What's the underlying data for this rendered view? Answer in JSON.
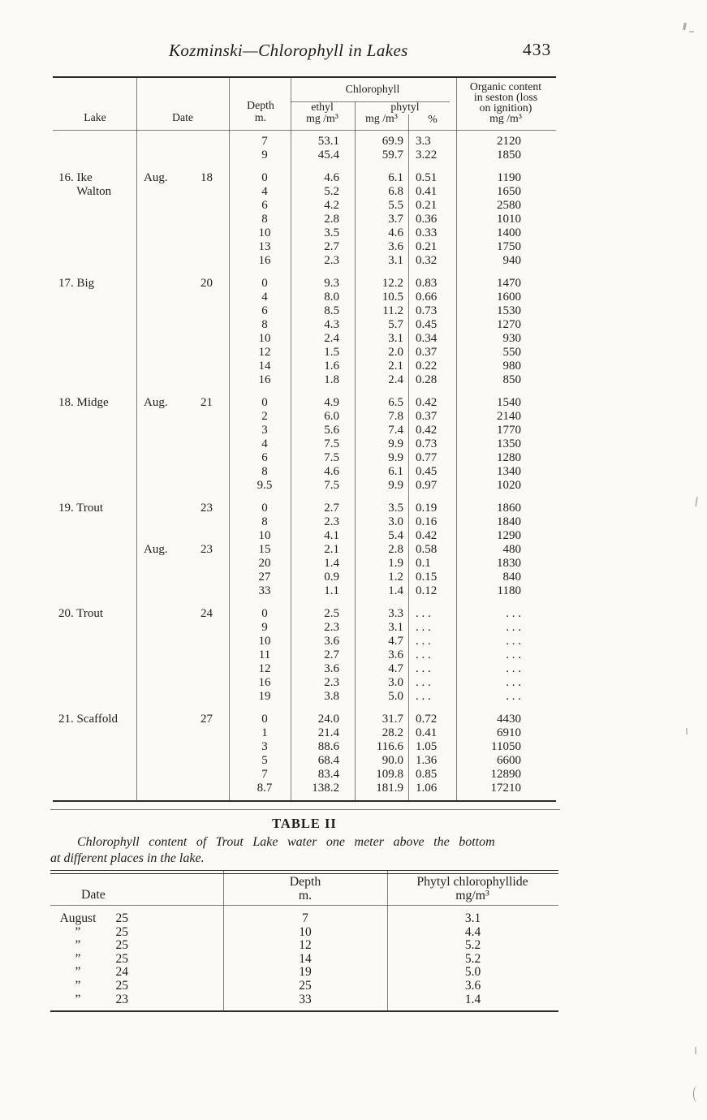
{
  "page": {
    "title": "Kozminski—Chlorophyll in Lakes",
    "page_number": "433"
  },
  "table1": {
    "headers": {
      "lake": "Lake",
      "date": "Date",
      "depth_l1": "Depth",
      "depth_l2": "m.",
      "chlorophyll": "Chlorophyll",
      "ethyl_l1": "ethyl",
      "ethyl_l2": "mg /m³",
      "phytyl": "phytyl",
      "phytyl_mg": "mg /m³",
      "percent": "%",
      "organic_l1": "Organic content",
      "organic_l2": "in seston (loss",
      "organic_l3": "on ignition)",
      "organic_l4": "mg /m³"
    },
    "columns": [
      "lake",
      "date",
      "depth",
      "ethyl_mg_m3",
      "phytyl_mg_m3",
      "phytyl_pct",
      "organic_mg_m3"
    ],
    "groups": [
      {
        "rows": [
          [
            "",
            "",
            "7",
            "53.1",
            "69.9",
            "3.3",
            "2120"
          ],
          [
            "",
            "",
            "9",
            "45.4",
            "59.7",
            "3.22",
            "1850"
          ]
        ]
      },
      {
        "rows": [
          [
            "16. Ike",
            "Aug. 18",
            "0",
            "4.6",
            "6.1",
            "0.51",
            "1190"
          ],
          [
            "      Walton",
            "",
            "4",
            "5.2",
            "6.8",
            "0.41",
            "1650"
          ],
          [
            "",
            "",
            "6",
            "4.2",
            "5.5",
            "0.21",
            "2580"
          ],
          [
            "",
            "",
            "8",
            "2.8",
            "3.7",
            "0.36",
            "1010"
          ],
          [
            "",
            "",
            "10",
            "3.5",
            "4.6",
            "0.33",
            "1400"
          ],
          [
            "",
            "",
            "13",
            "2.7",
            "3.6",
            "0.21",
            "1750"
          ],
          [
            "",
            "",
            "16",
            "2.3",
            "3.1",
            "0.32",
            "940"
          ]
        ]
      },
      {
        "rows": [
          [
            "17. Big",
            "20",
            "0",
            "9.3",
            "12.2",
            "0.83",
            "1470"
          ],
          [
            "",
            "",
            "4",
            "8.0",
            "10.5",
            "0.66",
            "1600"
          ],
          [
            "",
            "",
            "6",
            "8.5",
            "11.2",
            "0.73",
            "1530"
          ],
          [
            "",
            "",
            "8",
            "4.3",
            "5.7",
            "0.45",
            "1270"
          ],
          [
            "",
            "",
            "10",
            "2.4",
            "3.1",
            "0.34",
            "930"
          ],
          [
            "",
            "",
            "12",
            "1.5",
            "2.0",
            "0.37",
            "550"
          ],
          [
            "",
            "",
            "14",
            "1.6",
            "2.1",
            "0.22",
            "980"
          ],
          [
            "",
            "",
            "16",
            "1.8",
            "2.4",
            "0.28",
            "850"
          ]
        ]
      },
      {
        "rows": [
          [
            "18. Midge",
            "Aug. 21",
            "0",
            "4.9",
            "6.5",
            "0.42",
            "1540"
          ],
          [
            "",
            "",
            "2",
            "6.0",
            "7.8",
            "0.37",
            "2140"
          ],
          [
            "",
            "",
            "3",
            "5.6",
            "7.4",
            "0.42",
            "1770"
          ],
          [
            "",
            "",
            "4",
            "7.5",
            "9.9",
            "0.73",
            "1350"
          ],
          [
            "",
            "",
            "6",
            "7.5",
            "9.9",
            "0.77",
            "1280"
          ],
          [
            "",
            "",
            "8",
            "4.6",
            "6.1",
            "0.45",
            "1340"
          ],
          [
            "",
            "",
            "9.5",
            "7.5",
            "9.9",
            "0.97",
            "1020"
          ]
        ]
      },
      {
        "rows": [
          [
            "19. Trout",
            "23",
            "0",
            "2.7",
            "3.5",
            "0.19",
            "1860"
          ],
          [
            "",
            "",
            "8",
            "2.3",
            "3.0",
            "0.16",
            "1840"
          ],
          [
            "",
            "",
            "10",
            "4.1",
            "5.4",
            "0.42",
            "1290"
          ],
          [
            "",
            "Aug. 23",
            "15",
            "2.1",
            "2.8",
            "0.58",
            "480"
          ],
          [
            "",
            "",
            "20",
            "1.4",
            "1.9",
            "0.1",
            "1830"
          ],
          [
            "",
            "",
            "27",
            "0.9",
            "1.2",
            "0.15",
            "840"
          ],
          [
            "",
            "",
            "33",
            "1.1",
            "1.4",
            "0.12",
            "1180"
          ]
        ]
      },
      {
        "rows": [
          [
            "20. Trout",
            "24",
            "0",
            "2.5",
            "3.3",
            ". . .",
            ". . ."
          ],
          [
            "",
            "",
            "9",
            "2.3",
            "3.1",
            ". . .",
            ". . ."
          ],
          [
            "",
            "",
            "10",
            "3.6",
            "4.7",
            ". . .",
            ". . ."
          ],
          [
            "",
            "",
            "11",
            "2.7",
            "3.6",
            ". . .",
            ". . ."
          ],
          [
            "",
            "",
            "12",
            "3.6",
            "4.7",
            ". . .",
            ". . ."
          ],
          [
            "",
            "",
            "16",
            "2.3",
            "3.0",
            ". . .",
            ". . ."
          ],
          [
            "",
            "",
            "19",
            "3.8",
            "5.0",
            ". . .",
            ". . ."
          ]
        ]
      },
      {
        "rows": [
          [
            "21. Scaffold",
            "27",
            "0",
            "24.0",
            "31.7",
            "0.72",
            "4430"
          ],
          [
            "",
            "",
            "1",
            "21.4",
            "28.2",
            "0.41",
            "6910"
          ],
          [
            "",
            "",
            "3",
            "88.6",
            "116.6",
            "1.05",
            "11050"
          ],
          [
            "",
            "",
            "5",
            "68.4",
            "90.0",
            "1.36",
            "6600"
          ],
          [
            "",
            "",
            "7",
            "83.4",
            "109.8",
            "0.85",
            "12890"
          ],
          [
            "",
            "",
            "8.7",
            "138.2",
            "181.9",
            "1.06",
            "17210"
          ]
        ]
      }
    ]
  },
  "table2": {
    "title": "TABLE II",
    "caption_l1": "Chlorophyll content of Trout Lake water one meter above the bottom",
    "caption_l2": "at different places in the lake.",
    "headers": {
      "date": "Date",
      "depth_l1": "Depth",
      "depth_l2": "m.",
      "phytyl_l1": "Phytyl chlorophyllide",
      "phytyl_l2": "mg/m³"
    },
    "rows": [
      {
        "month": "August",
        "day": "25",
        "depth": "7",
        "value": "3.1"
      },
      {
        "month": "”",
        "day": "25",
        "depth": "10",
        "value": "4.4"
      },
      {
        "month": "”",
        "day": "25",
        "depth": "12",
        "value": "5.2"
      },
      {
        "month": "”",
        "day": "25",
        "depth": "14",
        "value": "5.2"
      },
      {
        "month": "”",
        "day": "24",
        "depth": "19",
        "value": "5.0"
      },
      {
        "month": "”",
        "day": "25",
        "depth": "25",
        "value": "3.6"
      },
      {
        "month": "”",
        "day": "23",
        "depth": "33",
        "value": "1.4"
      }
    ]
  }
}
